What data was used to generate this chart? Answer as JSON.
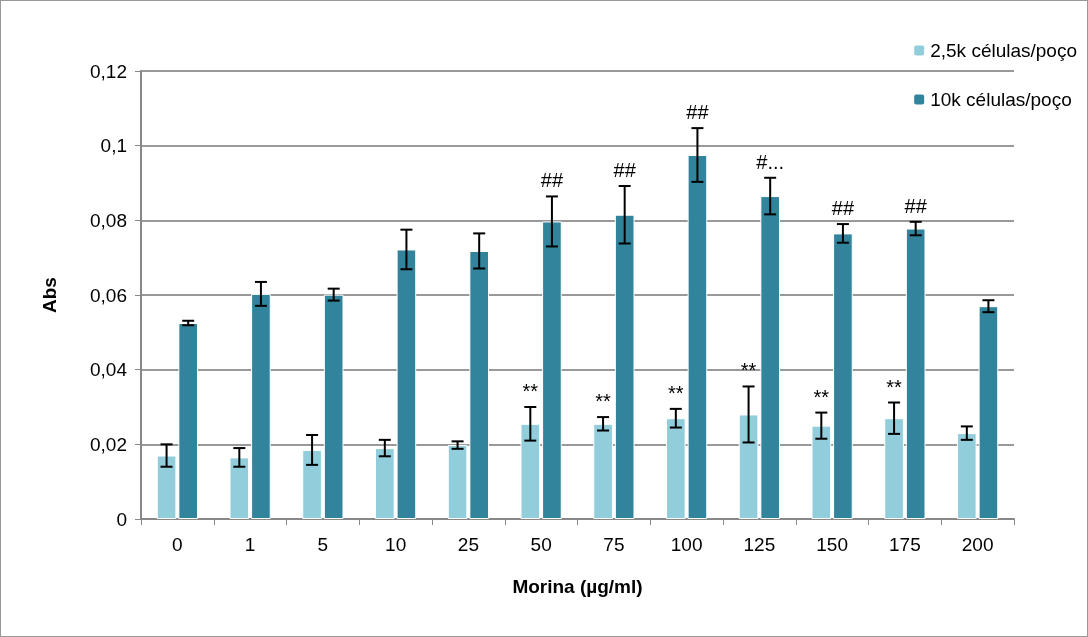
{
  "chart_data": {
    "type": "bar",
    "xlabel": "Morina (µg/ml)",
    "ylabel": "Abs",
    "categories": [
      "0",
      "1",
      "5",
      "10",
      "25",
      "50",
      "75",
      "100",
      "125",
      "150",
      "175",
      "200"
    ],
    "series": [
      {
        "name": "2,5k células/poço",
        "color": "#92cddc",
        "values": [
          0.017,
          0.0165,
          0.0185,
          0.019,
          0.0198,
          0.0255,
          0.0255,
          0.027,
          0.028,
          0.025,
          0.027,
          0.023
        ],
        "errors": [
          0.003,
          0.0025,
          0.004,
          0.0022,
          0.001,
          0.0045,
          0.0018,
          0.0025,
          0.0075,
          0.0035,
          0.0042,
          0.0018
        ]
      },
      {
        "name": "10k células/poço",
        "color": "#31849b",
        "values": [
          0.0525,
          0.0603,
          0.0601,
          0.0722,
          0.0718,
          0.0797,
          0.0815,
          0.0975,
          0.0865,
          0.0765,
          0.0778,
          0.057
        ],
        "errors": [
          0.0006,
          0.0032,
          0.0016,
          0.0053,
          0.0047,
          0.0067,
          0.0077,
          0.0072,
          0.0049,
          0.0025,
          0.0018,
          0.0016
        ]
      }
    ],
    "ylim": [
      0,
      0.12
    ],
    "yticks": [
      {
        "value": 0,
        "label": "0"
      },
      {
        "value": 0.02,
        "label": "0,02"
      },
      {
        "value": 0.04,
        "label": "0,04"
      },
      {
        "value": 0.06,
        "label": "0,06"
      },
      {
        "value": 0.08,
        "label": "0,08"
      },
      {
        "value": 0.1,
        "label": "0,1"
      },
      {
        "value": 0.12,
        "label": "0,12"
      }
    ],
    "grid": "y",
    "legend": "top right",
    "annotations": [
      {
        "text": "**",
        "x": "50",
        "y": 0.0255
      },
      {
        "text": "**",
        "x": "75",
        "y": 0.0255
      },
      {
        "text": "**",
        "x": "100",
        "y": 0.027
      },
      {
        "text": "**",
        "x": "125",
        "y": 0.028
      },
      {
        "text": "**",
        "x": "150",
        "y": 0.025
      },
      {
        "text": "**",
        "x": "175",
        "y": 0.027
      },
      {
        "text": "##",
        "x": "50",
        "y": 0.0797
      },
      {
        "text": "##",
        "x": "75",
        "y": 0.0815
      },
      {
        "text": "##",
        "x": "100",
        "y": 0.0975
      },
      {
        "text": "#...",
        "x": "125",
        "y": 0.0865
      },
      {
        "text": "##",
        "x": "150",
        "y": 0.0765
      },
      {
        "text": "##",
        "x": "175",
        "y": 0.0778
      }
    ]
  }
}
